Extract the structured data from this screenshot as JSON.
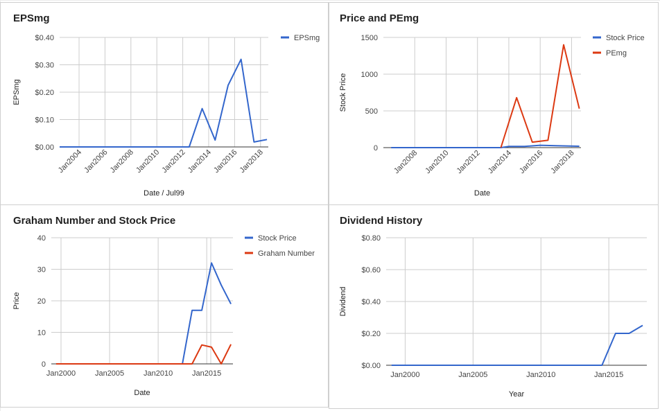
{
  "chart_data": [
    {
      "type": "line",
      "title": "EPSmg",
      "xlabel": "Date / Jul99",
      "ylabel": "EPSmg",
      "x_type": "date",
      "x_ticks": [
        "Jan2004",
        "Jan2006",
        "Jan2008",
        "Jan2010",
        "Jan2012",
        "Jan2014",
        "Jan2016",
        "Jan2018"
      ],
      "y_ticks": [
        "$0.00",
        "$0.10",
        "$0.20",
        "$0.30",
        "$0.40"
      ],
      "ylim": [
        0,
        0.4
      ],
      "legend_position": "right",
      "grid": true,
      "series": [
        {
          "name": "EPSmg",
          "color": "#3366cc",
          "points": [
            [
              "2002-07-01",
              0
            ],
            [
              "2012-07-01",
              0
            ],
            [
              "2013-07-01",
              0.14
            ],
            [
              "2014-07-01",
              0.025
            ],
            [
              "2015-07-01",
              0.225
            ],
            [
              "2016-07-01",
              0.32
            ],
            [
              "2017-07-01",
              0.018
            ],
            [
              "2018-07-01",
              0.027
            ]
          ]
        }
      ]
    },
    {
      "type": "line",
      "title": "Price and PEmg",
      "xlabel": "Date",
      "ylabel": "Stock Price",
      "x_type": "date",
      "x_ticks": [
        "Jan2008",
        "Jan2010",
        "Jan2012",
        "Jan2014",
        "Jan2016",
        "Jan2018"
      ],
      "y_ticks": [
        "0",
        "500",
        "1000",
        "1500"
      ],
      "ylim": [
        0,
        1500
      ],
      "legend_position": "right",
      "grid": true,
      "series": [
        {
          "name": "Stock Price",
          "color": "#3366cc",
          "points": [
            [
              "2006-07-01",
              0
            ],
            [
              "2013-07-01",
              0
            ],
            [
              "2014-01-01",
              17
            ],
            [
              "2015-01-01",
              17
            ],
            [
              "2016-01-01",
              32
            ],
            [
              "2017-01-01",
              25
            ],
            [
              "2018-07-01",
              19
            ]
          ]
        },
        {
          "name": "PEmg",
          "color": "#dc3912",
          "points": [
            [
              "2013-07-01",
              0
            ],
            [
              "2014-07-01",
              680
            ],
            [
              "2015-07-01",
              75
            ],
            [
              "2016-07-01",
              100
            ],
            [
              "2017-07-01",
              1400
            ],
            [
              "2018-07-01",
              530
            ]
          ]
        }
      ]
    },
    {
      "type": "line",
      "title": "Graham Number and Stock Price",
      "xlabel": "Date",
      "ylabel": "Price",
      "x_type": "date",
      "x_ticks": [
        "Jan2000",
        "Jan2005",
        "Jan2010",
        "Jan2015"
      ],
      "y_ticks": [
        "0",
        "10",
        "20",
        "30",
        "40"
      ],
      "ylim": [
        0,
        40
      ],
      "legend_position": "right",
      "grid": true,
      "series": [
        {
          "name": "Stock Price",
          "color": "#3366cc",
          "points": [
            [
              "1999-07-01",
              0
            ],
            [
              "2012-07-01",
              0
            ],
            [
              "2013-07-01",
              17
            ],
            [
              "2014-07-01",
              17
            ],
            [
              "2015-07-01",
              32
            ],
            [
              "2016-07-01",
              25
            ],
            [
              "2017-07-01",
              19
            ]
          ]
        },
        {
          "name": "Graham Number",
          "color": "#dc3912",
          "points": [
            [
              "1999-07-01",
              0
            ],
            [
              "2013-07-01",
              0
            ],
            [
              "2014-07-01",
              6
            ],
            [
              "2015-07-01",
              5.3
            ],
            [
              "2016-07-01",
              0
            ],
            [
              "2017-07-01",
              6.2
            ]
          ]
        }
      ]
    },
    {
      "type": "line",
      "title": "Dividend History",
      "xlabel": "Year",
      "ylabel": "Dividend",
      "x_type": "date",
      "x_ticks": [
        "Jan2000",
        "Jan2005",
        "Jan2010",
        "Jan2015"
      ],
      "y_ticks": [
        "$0.00",
        "$0.20",
        "$0.40",
        "$0.60",
        "$0.80"
      ],
      "ylim": [
        0,
        0.8
      ],
      "legend_position": "none",
      "grid": true,
      "series": [
        {
          "color": "#3366cc",
          "points": [
            [
              "1999-01-01",
              0
            ],
            [
              "2014-07-01",
              0
            ],
            [
              "2015-07-01",
              0.2
            ],
            [
              "2016-07-01",
              0.2
            ],
            [
              "2017-07-01",
              0.25
            ]
          ]
        }
      ]
    }
  ]
}
